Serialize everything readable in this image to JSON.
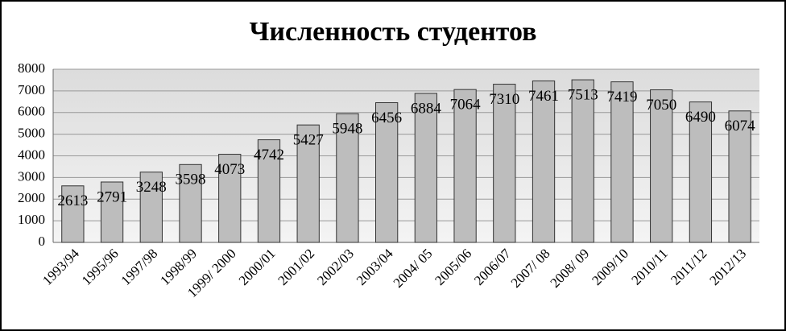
{
  "chart_data": {
    "type": "bar",
    "title": "Численность студентов",
    "categories": [
      "1993/94",
      "1995/96",
      "1997/98",
      "1998/99",
      "1999/ 2000",
      "2000/01",
      "2001/02",
      "2002/03",
      "2003/04",
      "2004/ 05",
      "2005/06",
      "2006/07",
      "2007/ 08",
      "2008/ 09",
      "2009/10",
      "2010/11",
      "2011/12",
      "2012/13"
    ],
    "values": [
      2613,
      2791,
      3248,
      3598,
      4073,
      4742,
      5427,
      5948,
      6456,
      6884,
      7064,
      7310,
      7461,
      7513,
      7419,
      7050,
      6490,
      6074
    ],
    "color": "#bdbdbd",
    "ylim": [
      0,
      8000
    ],
    "yticks": [
      0,
      1000,
      2000,
      3000,
      4000,
      5000,
      6000,
      7000,
      8000
    ],
    "grid": true
  }
}
